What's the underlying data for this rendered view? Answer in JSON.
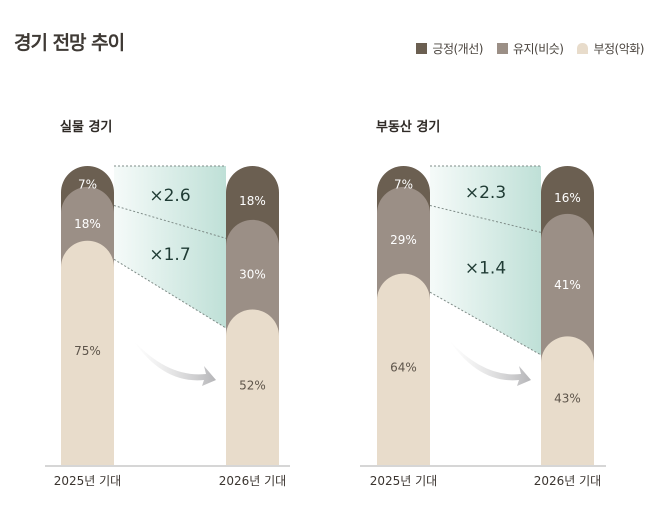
{
  "title": "경기 전망 추이",
  "colors": {
    "positive": "#6b5f51",
    "maintain": "#9b8f86",
    "negative": "#e8dccb",
    "highlight": "#bfe0d7"
  },
  "chart_data": [
    {
      "type": "bar",
      "stacked": true,
      "title": "실물 경기",
      "categories": [
        "2025년 기대",
        "2026년 기대"
      ],
      "series": [
        {
          "name": "긍정(개선)",
          "values": [
            7,
            18
          ],
          "labels": [
            "7%",
            "18%"
          ]
        },
        {
          "name": "유지(비슷)",
          "values": [
            18,
            30
          ],
          "labels": [
            "18%",
            "30%"
          ]
        },
        {
          "name": "부정(악화)",
          "values": [
            75,
            52
          ],
          "labels": [
            "75%",
            "52%"
          ]
        }
      ],
      "annotations": [
        "×2.6",
        "×1.7"
      ],
      "ylim": [
        0,
        100
      ]
    },
    {
      "type": "bar",
      "stacked": true,
      "title": "부동산 경기",
      "categories": [
        "2025년 기대",
        "2026년 기대"
      ],
      "series": [
        {
          "name": "긍정(개선)",
          "values": [
            7,
            16
          ],
          "labels": [
            "7%",
            "16%"
          ]
        },
        {
          "name": "유지(비슷)",
          "values": [
            29,
            41
          ],
          "labels": [
            "29%",
            "41%"
          ]
        },
        {
          "name": "부정(악화)",
          "values": [
            64,
            43
          ],
          "labels": [
            "64%",
            "43%"
          ]
        }
      ],
      "annotations": [
        "×2.3",
        "×1.4"
      ],
      "ylim": [
        0,
        100
      ]
    }
  ],
  "legend": [
    {
      "label": "긍정(개선)",
      "key": "positive"
    },
    {
      "label": "유지(비슷)",
      "key": "maintain"
    },
    {
      "label": "부정(악화)",
      "key": "negative"
    }
  ]
}
